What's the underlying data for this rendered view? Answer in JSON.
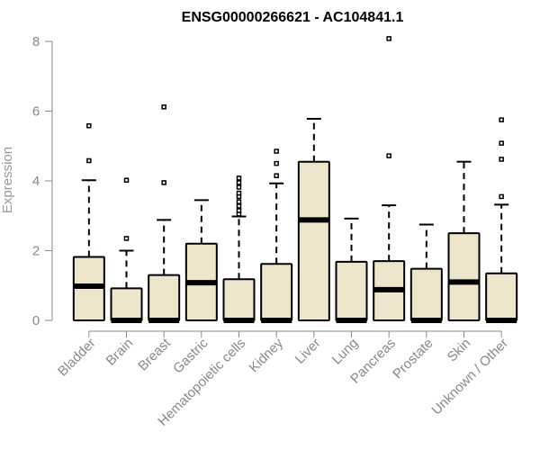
{
  "chart_data": {
    "type": "boxplot",
    "title": "ENSG00000266621 - AC104841.1",
    "xlabel": "",
    "ylabel": "Expression",
    "ylim": [
      0,
      8
    ],
    "yticks": [
      0,
      2,
      4,
      6,
      8
    ],
    "box_fill": "#ede6cc",
    "categories": [
      "Bladder",
      "Brain",
      "Breast",
      "Gastric",
      "Hematopoietic cells",
      "Kidney",
      "Liver",
      "Lung",
      "Pancreas",
      "Prostate",
      "Skin",
      "Unknown / Other"
    ],
    "boxes": [
      {
        "min": 0,
        "q1": 0,
        "median": 0.98,
        "q3": 1.82,
        "max": 4.02,
        "outliers": [
          4.58,
          5.58
        ]
      },
      {
        "min": 0,
        "q1": 0,
        "median": 0,
        "q3": 0.92,
        "max": 2.0,
        "outliers": [
          2.35,
          4.02
        ]
      },
      {
        "min": 0,
        "q1": 0,
        "median": 0,
        "q3": 1.3,
        "max": 2.88,
        "outliers": [
          3.95,
          6.12
        ]
      },
      {
        "min": 0,
        "q1": 0,
        "median": 1.08,
        "q3": 2.2,
        "max": 3.45,
        "outliers": []
      },
      {
        "min": 0,
        "q1": 0,
        "median": 0,
        "q3": 1.18,
        "max": 2.98,
        "outliers": [
          3.05,
          3.15,
          3.28,
          3.4,
          3.55,
          3.65,
          3.82,
          3.95,
          4.08
        ]
      },
      {
        "min": 0,
        "q1": 0,
        "median": 0,
        "q3": 1.62,
        "max": 3.93,
        "outliers": [
          4.15,
          4.5,
          4.85
        ]
      },
      {
        "min": 0,
        "q1": 0,
        "median": 2.88,
        "q3": 4.55,
        "max": 5.78,
        "outliers": []
      },
      {
        "min": 0,
        "q1": 0,
        "median": 0,
        "q3": 1.68,
        "max": 2.92,
        "outliers": []
      },
      {
        "min": 0,
        "q1": 0,
        "median": 0.88,
        "q3": 1.7,
        "max": 3.3,
        "outliers": [
          4.72,
          8.08
        ]
      },
      {
        "min": 0,
        "q1": 0,
        "median": 0,
        "q3": 1.48,
        "max": 2.75,
        "outliers": []
      },
      {
        "min": 0,
        "q1": 0,
        "median": 1.1,
        "q3": 2.5,
        "max": 4.55,
        "outliers": []
      },
      {
        "min": 0,
        "q1": 0,
        "median": 0,
        "q3": 1.35,
        "max": 3.32,
        "outliers": [
          3.55,
          4.62,
          5.08,
          5.75
        ]
      }
    ]
  }
}
